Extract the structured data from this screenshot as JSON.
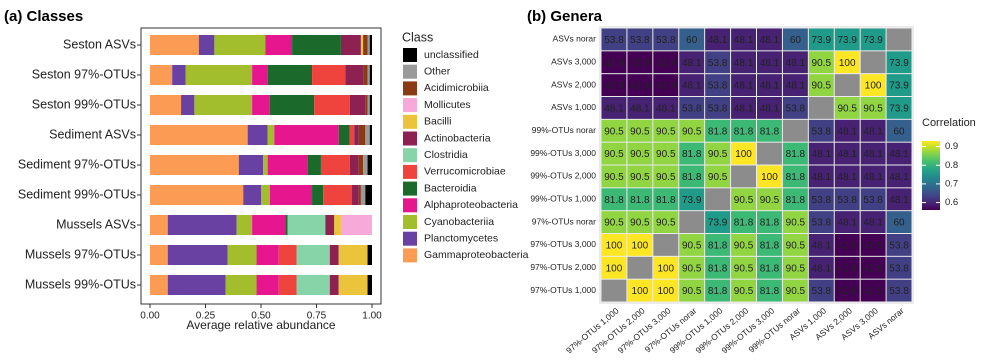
{
  "chart_data": [
    {
      "type": "stacked_bar_horizontal",
      "title": "(a) Classes",
      "xlabel": "Average relative abundance",
      "legend_title": "Class",
      "categories": [
        "Seston ASVs",
        "Seston 97%-OTUs",
        "Seston 99%-OTUs",
        "Sediment ASVs",
        "Sediment 97%-OTUs",
        "Sediment 99%-OTUs",
        "Mussels ASVs",
        "Mussels 97%-OTUs",
        "Mussels 99%-OTUs"
      ],
      "xlim": [
        0,
        1
      ],
      "xticks": [
        {
          "value": 0,
          "label": "0.00"
        },
        {
          "value": 0.25,
          "label": "0.25"
        },
        {
          "value": 0.5,
          "label": "0.50"
        },
        {
          "value": 0.75,
          "label": "0.75"
        },
        {
          "value": 1,
          "label": "1.00"
        }
      ],
      "series": [
        {
          "name": "Gammaproteobacteria",
          "color": "#fc9b54",
          "values": [
            0.22,
            0.1,
            0.14,
            0.44,
            0.4,
            0.42,
            0.08,
            0.08,
            0.08
          ]
        },
        {
          "name": "Planctomycetes",
          "color": "#6841a3",
          "values": [
            0.07,
            0.06,
            0.06,
            0.09,
            0.11,
            0.08,
            0.31,
            0.27,
            0.26
          ]
        },
        {
          "name": "Cyanobacteriia",
          "color": "#a3be2c",
          "values": [
            0.23,
            0.3,
            0.26,
            0.03,
            0.02,
            0.04,
            0.07,
            0.13,
            0.14
          ]
        },
        {
          "name": "Alphaproteobacteria",
          "color": "#e5168e",
          "values": [
            0.12,
            0.07,
            0.08,
            0.29,
            0.18,
            0.19,
            0.15,
            0.1,
            0.1
          ]
        },
        {
          "name": "Bacteroidia",
          "color": "#1b6a2b",
          "values": [
            0.22,
            0.2,
            0.2,
            0.05,
            0.06,
            0.05,
            0.01,
            0,
            0
          ]
        },
        {
          "name": "Verrucomicrobiae",
          "color": "#ef443d",
          "values": [
            0,
            0.15,
            0.16,
            0.02,
            0.13,
            0.13,
            0,
            0.08,
            0.08
          ]
        },
        {
          "name": "Clostridia",
          "color": "#86d4a8",
          "values": [
            0,
            0,
            0,
            0,
            0,
            0,
            0.17,
            0.15,
            0.15
          ]
        },
        {
          "name": "Actinobacteria",
          "color": "#8d2151",
          "values": [
            0.09,
            0.08,
            0.07,
            0.02,
            0.04,
            0.03,
            0.04,
            0.04,
            0.04
          ]
        },
        {
          "name": "Bacilli",
          "color": "#ecc43b",
          "values": [
            0.01,
            0,
            0,
            0,
            0,
            0,
            0.03,
            0.13,
            0.13
          ]
        },
        {
          "name": "Mollicutes",
          "color": "#f7a9d9",
          "values": [
            0,
            0,
            0,
            0,
            0,
            0,
            0.14,
            0,
            0
          ]
        },
        {
          "name": "Acidimicrobiia",
          "color": "#8a3a14",
          "values": [
            0.02,
            0.02,
            0.01,
            0.03,
            0.02,
            0.01,
            0,
            0,
            0
          ]
        },
        {
          "name": "Other",
          "color": "#9a9a9a",
          "values": [
            0.01,
            0.01,
            0.01,
            0.02,
            0.02,
            0.02,
            0,
            0,
            0
          ]
        },
        {
          "name": "unclassified",
          "color": "#000000",
          "values": [
            0.01,
            0.01,
            0.01,
            0.01,
            0.02,
            0.03,
            0,
            0.02,
            0.02
          ]
        }
      ]
    },
    {
      "type": "heatmap",
      "title": "(b) Genera",
      "legend_title": "Correlation",
      "x": [
        "97%-OTUs 1,000",
        "97%-OTUs 2,000",
        "97%-OTUs 3,000",
        "97%-OTUs norar",
        "99%-OTUs 1,000",
        "99%-OTUs 2,000",
        "99%-OTUs 3,000",
        "99%-OTUs norar",
        "ASVs 1,000",
        "ASVs 2,000",
        "ASVs 3,000",
        "ASVs norar"
      ],
      "y": [
        "ASVs norar",
        "ASVs 3,000",
        "ASVs 2,000",
        "ASVs 1,000",
        "99%-OTUs norar",
        "99%-OTUs 3,000",
        "99%-OTUs 2,000",
        "99%-OTUs 1,000",
        "97%-OTUs norar",
        "97%-OTUs 3,000",
        "97%-OTUs 2,000",
        "97%-OTUs 1,000"
      ],
      "values": [
        [
          53.8,
          53.8,
          53.8,
          60,
          48.1,
          48.1,
          48.1,
          60,
          73.9,
          73.9,
          73.9,
          null
        ],
        [
          42.9,
          42.9,
          42.9,
          48.1,
          53.8,
          48.1,
          48.1,
          48.1,
          90.5,
          100,
          null,
          73.9
        ],
        [
          42.9,
          42.9,
          42.9,
          48.1,
          53.8,
          48.1,
          48.1,
          48.1,
          90.5,
          null,
          100,
          73.9
        ],
        [
          48.1,
          48.1,
          48.1,
          53.8,
          53.8,
          48.1,
          48.1,
          53.8,
          null,
          90.5,
          90.5,
          73.9
        ],
        [
          90.5,
          90.5,
          90.5,
          90.5,
          81.8,
          81.8,
          81.8,
          null,
          53.8,
          48.1,
          48.1,
          60
        ],
        [
          90.5,
          90.5,
          90.5,
          81.8,
          90.5,
          100,
          null,
          81.8,
          48.1,
          48.1,
          48.1,
          48.1
        ],
        [
          90.5,
          90.5,
          90.5,
          81.8,
          90.5,
          null,
          100,
          81.8,
          48.1,
          48.1,
          48.1,
          48.1
        ],
        [
          81.8,
          81.8,
          81.8,
          73.9,
          null,
          90.5,
          90.5,
          81.8,
          53.8,
          53.8,
          53.8,
          48.1
        ],
        [
          90.5,
          90.5,
          90.5,
          null,
          73.9,
          81.8,
          81.8,
          90.5,
          53.8,
          48.1,
          48.1,
          60
        ],
        [
          100,
          100,
          null,
          90.5,
          81.8,
          90.5,
          81.8,
          90.5,
          48.1,
          42.9,
          42.9,
          53.8
        ],
        [
          100,
          null,
          100,
          90.5,
          81.8,
          90.5,
          81.8,
          90.5,
          48.1,
          42.9,
          42.9,
          53.8
        ],
        [
          null,
          100,
          100,
          90.5,
          81.8,
          90.5,
          81.8,
          90.5,
          53.8,
          42.9,
          42.9,
          53.8
        ]
      ],
      "colorbar_lim": [
        0.56,
        0.93
      ],
      "colorbar_ticks": [
        0.6,
        0.7,
        0.8,
        0.9
      ]
    }
  ]
}
